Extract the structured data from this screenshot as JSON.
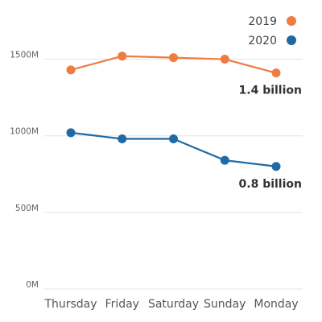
{
  "chart_data": {
    "type": "line",
    "categories": [
      "Thursday",
      "Friday",
      "Saturday",
      "Sunday",
      "Monday"
    ],
    "series": [
      {
        "name": "2019",
        "color": "#f07b3f",
        "values": [
          1430,
          1520,
          1510,
          1500,
          1410
        ]
      },
      {
        "name": "2020",
        "color": "#1f6aa5",
        "values": [
          1020,
          980,
          980,
          840,
          800
        ]
      }
    ],
    "y_ticks": [
      {
        "value": 0,
        "label": "0M"
      },
      {
        "value": 500,
        "label": "500M"
      },
      {
        "value": 1000,
        "label": "1000M"
      },
      {
        "value": 1500,
        "label": "1500M"
      }
    ],
    "ylim": [
      0,
      1650
    ],
    "grid": true,
    "legend": {
      "placement": "top-right",
      "items": [
        {
          "label": "2019",
          "color": "#f07b3f"
        },
        {
          "label": "2020",
          "color": "#1f6aa5"
        }
      ]
    },
    "annotations": [
      {
        "series": "2019",
        "category": "Monday",
        "text": "1.4 billion"
      },
      {
        "series": "2020",
        "category": "Monday",
        "text": "0.8 billion"
      }
    ],
    "title": "",
    "xlabel": "",
    "ylabel": ""
  }
}
